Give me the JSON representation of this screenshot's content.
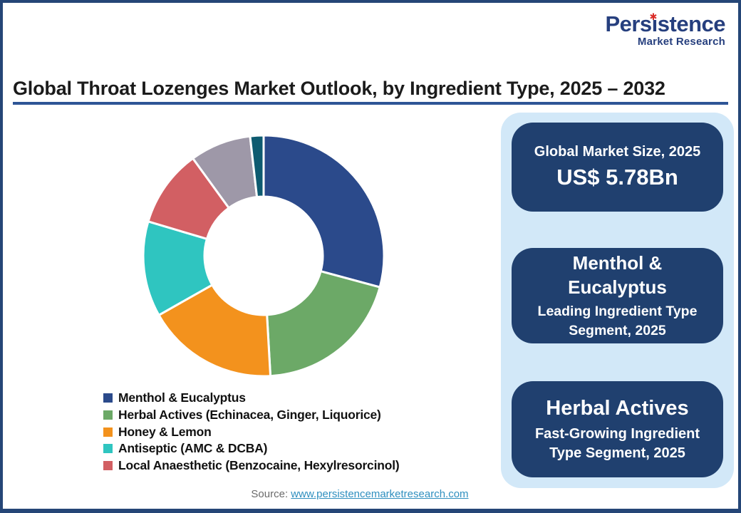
{
  "page": {
    "border_color": "#254677",
    "background": "#FFFFFF"
  },
  "logo": {
    "name": "Persistence",
    "subtitle": "Market Research",
    "star_glyph": "✱",
    "text_color": "#263F7E",
    "star_color": "#D92B27"
  },
  "header": {
    "title": "Global Throat Lozenges Market Outlook, by Ingredient Type, 2025 – 2032",
    "underline_color": "#2E5596"
  },
  "chart_data": {
    "type": "pie",
    "donut": true,
    "title": "Global Throat Lozenges Market Outlook, by Ingredient Type, 2025 – 2032",
    "unit": "%",
    "start_angle_deg": 0,
    "clockwise": true,
    "legend_position": "bottom-left",
    "segments": [
      {
        "label": "Menthol & Eucalyptus",
        "value": 29.2,
        "color": "#2B4A8B",
        "in_legend": true
      },
      {
        "label": "Herbal Actives (Echinacea, Ginger, Liquorice)",
        "value": 19.9,
        "color": "#6CA967",
        "in_legend": true
      },
      {
        "label": "Honey & Lemon",
        "value": 17.7,
        "color": "#F3921D",
        "in_legend": true
      },
      {
        "label": "Antiseptic (AMC & DCBA)",
        "value": 12.8,
        "color": "#2FC5C0",
        "in_legend": true
      },
      {
        "label": "Local Anaesthetic (Benzocaine, Hexylresorcinol)",
        "value": 10.4,
        "color": "#D25F63",
        "in_legend": true
      },
      {
        "label": "",
        "value": 8.2,
        "color": "#9E98A8",
        "in_legend": false
      },
      {
        "label": "",
        "value": 1.8,
        "color": "#0E5B70",
        "in_legend": false
      }
    ]
  },
  "highlights": {
    "panel_bg": "#D2E8F8",
    "card_bg": "#20406F",
    "cards": [
      {
        "top": "Global Market Size, 2025",
        "main": "US$ 5.78Bn"
      },
      {
        "main": "Menthol & Eucalyptus",
        "sub": "Leading Ingredient Type Segment, 2025"
      },
      {
        "main": "Herbal Actives",
        "sub": "Fast-Growing Ingredient Type Segment, 2025"
      }
    ]
  },
  "footer": {
    "source_label": "Source: ",
    "source_link": "www.persistencemarketresearch.com",
    "link_color": "#2F8FBF"
  }
}
